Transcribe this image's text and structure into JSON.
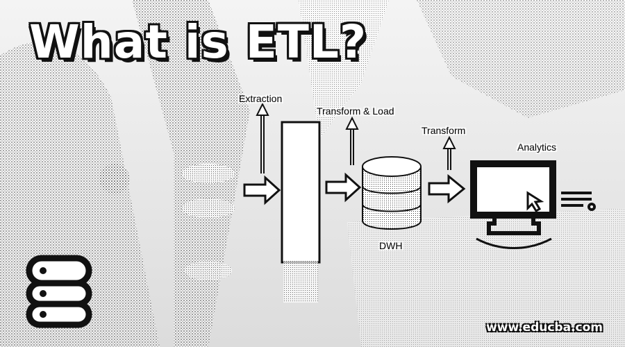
{
  "title": "What is ETL?",
  "steps": {
    "extraction": "Extraction",
    "transform_load": "Transform & Load",
    "transform": "Transform",
    "analytics": "Analytics",
    "dwh": "DWH"
  },
  "footer": {
    "website": "www.educba.com"
  },
  "colors": {
    "ink": "#111111",
    "paper": "#ffffff"
  }
}
